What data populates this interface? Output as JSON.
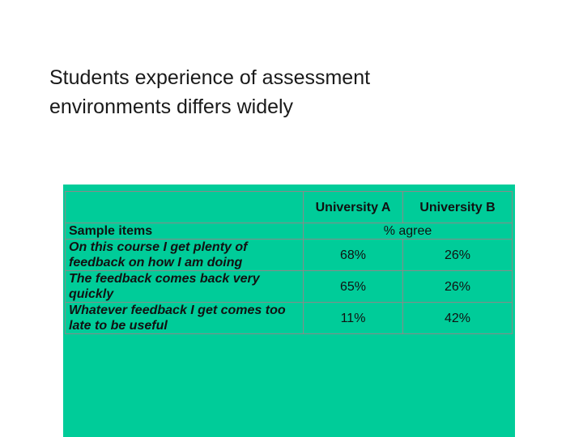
{
  "slide": {
    "title_line1": "Students experience of assessment",
    "title_line2": "environments differs widely"
  },
  "table": {
    "columns": [
      "University A",
      "University B"
    ],
    "subheader_label": "Sample items",
    "subheader_value": "% agree",
    "rows": [
      {
        "item": "On this course I get plenty of feedback on how I am doing",
        "a": "68%",
        "b": "26%"
      },
      {
        "item": "The feedback comes back very quickly",
        "a": "65%",
        "b": "26%"
      },
      {
        "item": "Whatever feedback I get comes too late to be useful",
        "a": "11%",
        "b": "42%"
      }
    ]
  },
  "colors": {
    "panel": "#00cc99",
    "grid": "#8a8a8a",
    "text": "#111111"
  }
}
